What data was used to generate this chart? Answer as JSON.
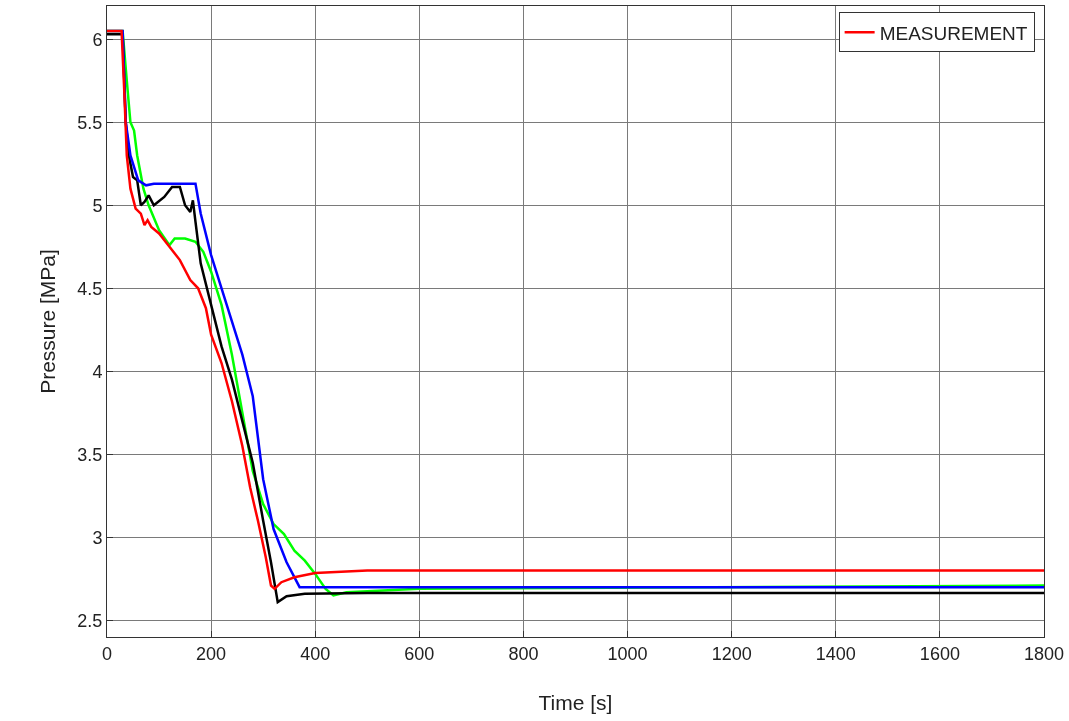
{
  "chart_data": {
    "type": "line",
    "xlabel": "Time [s]",
    "ylabel": "Pressure [MPa]",
    "xlim": [
      0,
      1800
    ],
    "xticks": [
      0,
      200,
      400,
      600,
      800,
      1000,
      1200,
      1400,
      1600,
      1800
    ],
    "ylim": [
      2.4,
      6.2
    ],
    "yticks": [
      2.5,
      3,
      3.5,
      4,
      4.5,
      5,
      5.5,
      6
    ],
    "grid": true,
    "legend": "top right",
    "marker": "none",
    "line_style": "solid",
    "series": [
      {
        "color": "#00ff00",
        "x": [
          0,
          30,
          38,
          45,
          52,
          58,
          70,
          80,
          100,
          120,
          130,
          150,
          170,
          185,
          200,
          220,
          240,
          260,
          280,
          300,
          320,
          340,
          360,
          380,
          400,
          420,
          435,
          460,
          600,
          1800
        ],
        "values": [
          6.05,
          6.05,
          5.75,
          5.5,
          5.45,
          5.3,
          5.1,
          5.0,
          4.85,
          4.76,
          4.8,
          4.8,
          4.78,
          4.72,
          4.6,
          4.4,
          4.1,
          3.75,
          3.4,
          3.2,
          3.08,
          3.02,
          2.92,
          2.86,
          2.78,
          2.69,
          2.65,
          2.67,
          2.69,
          2.71
        ]
      },
      {
        "color": "#000000",
        "x": [
          0,
          30,
          36,
          42,
          50,
          58,
          65,
          72,
          80,
          90,
          110,
          125,
          140,
          150,
          160,
          165,
          170,
          180,
          200,
          220,
          240,
          260,
          280,
          300,
          315,
          328,
          345,
          380,
          500,
          1800
        ],
        "values": [
          6.03,
          6.03,
          5.5,
          5.3,
          5.17,
          5.15,
          5.0,
          5.02,
          5.06,
          5.0,
          5.05,
          5.11,
          5.11,
          5.0,
          4.96,
          5.03,
          4.9,
          4.65,
          4.4,
          4.15,
          3.95,
          3.7,
          3.45,
          3.1,
          2.85,
          2.61,
          2.645,
          2.66,
          2.665,
          2.665
        ]
      },
      {
        "color": "#0000ff",
        "x": [
          0,
          30,
          36,
          45,
          60,
          75,
          90,
          170,
          180,
          200,
          230,
          260,
          280,
          290,
          300,
          320,
          345,
          370,
          500,
          1800
        ],
        "values": [
          6.05,
          6.05,
          5.5,
          5.3,
          5.15,
          5.12,
          5.13,
          5.13,
          4.95,
          4.7,
          4.4,
          4.1,
          3.85,
          3.6,
          3.35,
          3.05,
          2.85,
          2.7,
          2.7,
          2.7
        ]
      },
      {
        "name": "MEASUREMENT",
        "color": "#ff0000",
        "x": [
          0,
          28,
          33,
          38,
          45,
          55,
          65,
          72,
          78,
          85,
          100,
          120,
          140,
          160,
          175,
          190,
          200,
          220,
          240,
          260,
          275,
          290,
          305,
          315,
          322,
          335,
          360,
          400,
          500,
          1000,
          1800
        ],
        "values": [
          6.05,
          6.05,
          5.7,
          5.3,
          5.1,
          4.98,
          4.95,
          4.88,
          4.91,
          4.87,
          4.83,
          4.75,
          4.67,
          4.55,
          4.5,
          4.38,
          4.22,
          4.05,
          3.82,
          3.55,
          3.3,
          3.1,
          2.88,
          2.71,
          2.69,
          2.73,
          2.76,
          2.785,
          2.8,
          2.8,
          2.8
        ]
      }
    ]
  }
}
